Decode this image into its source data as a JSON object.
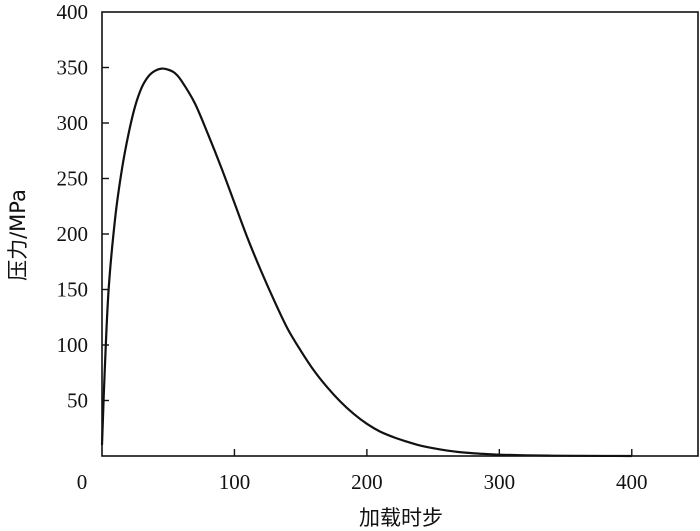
{
  "chart_data": {
    "type": "line",
    "xlabel": "加载时步",
    "ylabel": "压力/MPa",
    "xlim": [
      0,
      450
    ],
    "ylim": [
      0,
      400
    ],
    "x_ticks": [
      {
        "value": 0,
        "label": "0"
      },
      {
        "value": 100,
        "label": "100"
      },
      {
        "value": 200,
        "label": "200"
      },
      {
        "value": 300,
        "label": "300"
      },
      {
        "value": 400,
        "label": "400"
      }
    ],
    "y_ticks": [
      {
        "value": 50,
        "label": "50"
      },
      {
        "value": 100,
        "label": "100"
      },
      {
        "value": 150,
        "label": "150"
      },
      {
        "value": 200,
        "label": "200"
      },
      {
        "value": 250,
        "label": "250"
      },
      {
        "value": 300,
        "label": "300"
      },
      {
        "value": 350,
        "label": "350"
      },
      {
        "value": 400,
        "label": "400"
      }
    ],
    "grid": false,
    "colors": {
      "line": "#111111",
      "axis": "#111111",
      "background": "#ffffff"
    },
    "series": [
      {
        "x": [
          0,
          2,
          5,
          10,
          15,
          20,
          25,
          30,
          35,
          40,
          45,
          50,
          55,
          60,
          70,
          80,
          90,
          100,
          110,
          120,
          130,
          140,
          150,
          160,
          170,
          180,
          190,
          200,
          210,
          220,
          230,
          240,
          250,
          260,
          270,
          280,
          290,
          300,
          320,
          340,
          360,
          380,
          400
        ],
        "y": [
          10,
          75,
          150,
          215,
          258,
          290,
          315,
          332,
          342,
          347,
          349,
          348,
          345,
          338,
          318,
          290,
          260,
          228,
          196,
          167,
          140,
          115,
          95,
          77,
          62,
          49,
          38,
          29,
          22,
          17,
          13,
          9.5,
          7,
          5,
          3.5,
          2.5,
          1.8,
          1.2,
          0.6,
          0.3,
          0.15,
          0.07,
          0.03
        ]
      }
    ]
  }
}
